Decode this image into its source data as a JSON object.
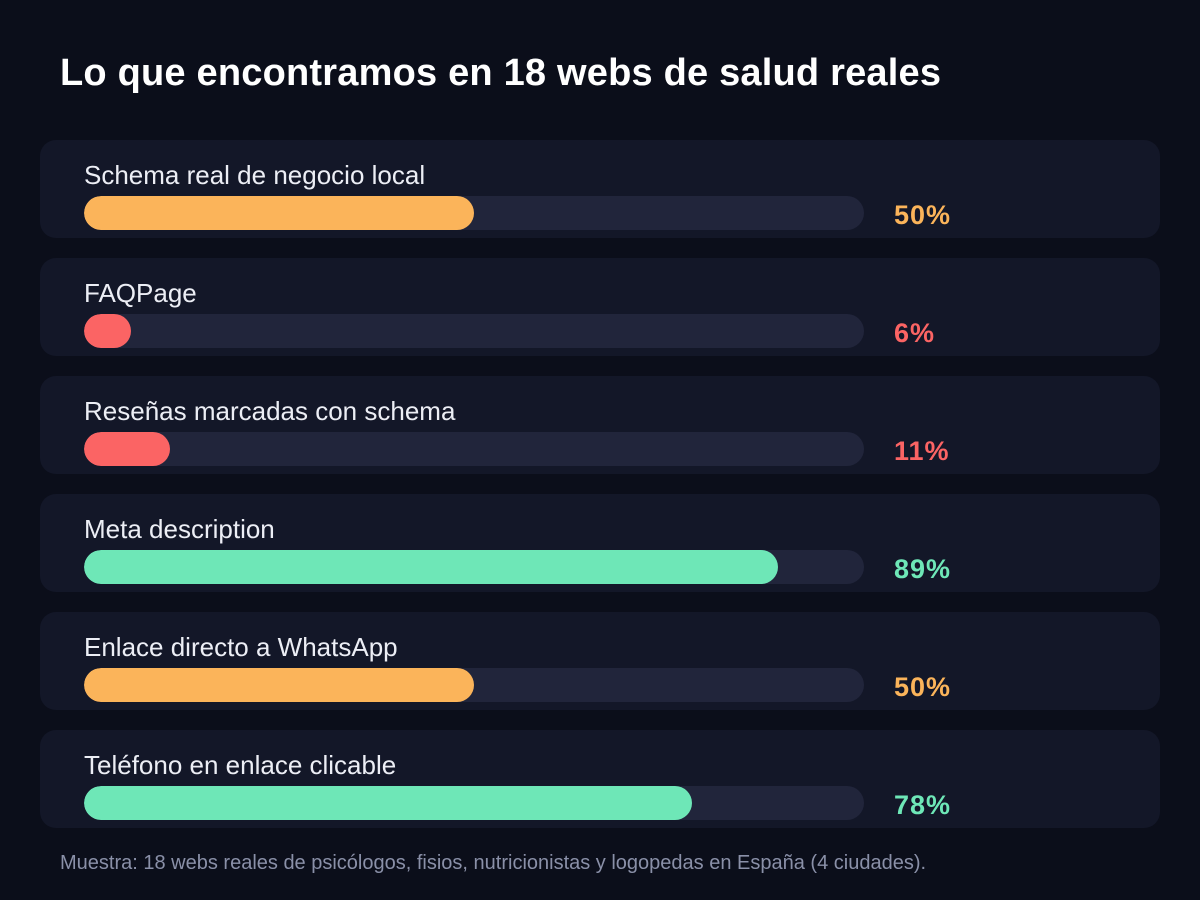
{
  "colors": {
    "background": "#0b0e1a",
    "card": "#131728",
    "track": "#21253b",
    "high": "#6ee7b7",
    "mid": "#fbb45a",
    "low": "#fb6464"
  },
  "chart_data": {
    "type": "bar",
    "orientation": "horizontal",
    "title": "Lo que encontramos en 18 webs de salud reales",
    "categories": [
      "Schema real de negocio local",
      "FAQPage",
      "Reseñas marcadas con schema",
      "Meta description",
      "Enlace directo a WhatsApp",
      "Teléfono en enlace clicable"
    ],
    "values": [
      50,
      6,
      11,
      89,
      50,
      78
    ],
    "value_labels": [
      "50%",
      "6%",
      "11%",
      "89%",
      "50%",
      "78%"
    ],
    "bar_colors": [
      "#fbb45a",
      "#fb6464",
      "#fb6464",
      "#6ee7b7",
      "#fbb45a",
      "#6ee7b7"
    ],
    "xlim": [
      0,
      100
    ],
    "grid": false,
    "footnote": "Muestra: 18 webs reales de psicólogos, fisios, nutricionistas y logopedas en España (4 ciudades)."
  }
}
